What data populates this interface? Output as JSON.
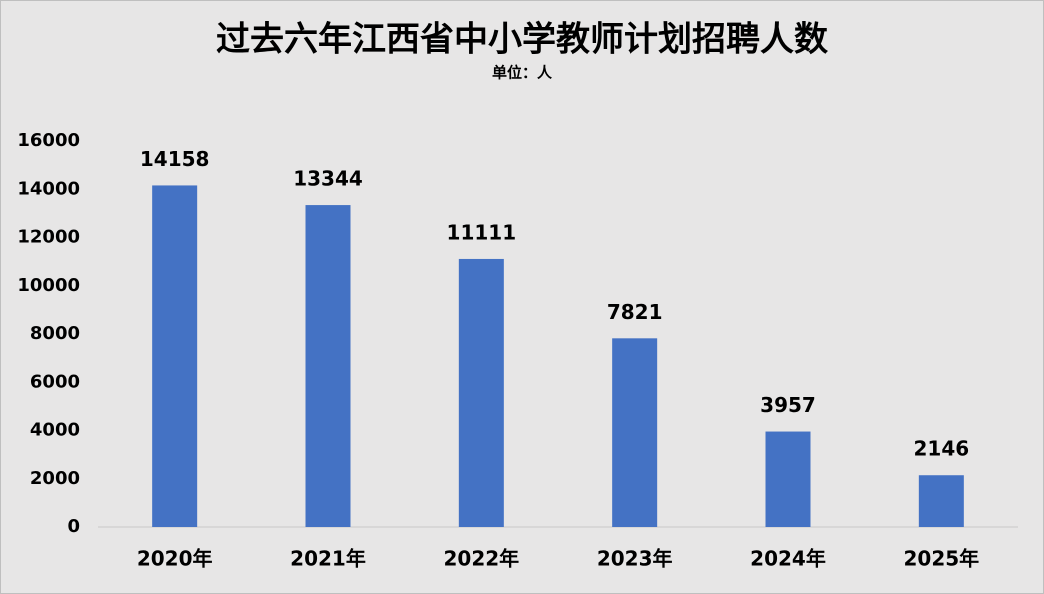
{
  "chart_data": {
    "type": "bar",
    "title": "过去六年江西省中小学教师计划招聘人数",
    "subtitle": "单位：人",
    "categories": [
      "2020年",
      "2021年",
      "2022年",
      "2023年",
      "2024年",
      "2025年"
    ],
    "values": [
      14158,
      13344,
      11111,
      7821,
      3957,
      2146
    ],
    "color": "#4472c4",
    "ylim": [
      0,
      16000
    ],
    "yticks": [
      0,
      2000,
      4000,
      6000,
      8000,
      10000,
      12000,
      14000,
      16000
    ],
    "grid": false
  }
}
